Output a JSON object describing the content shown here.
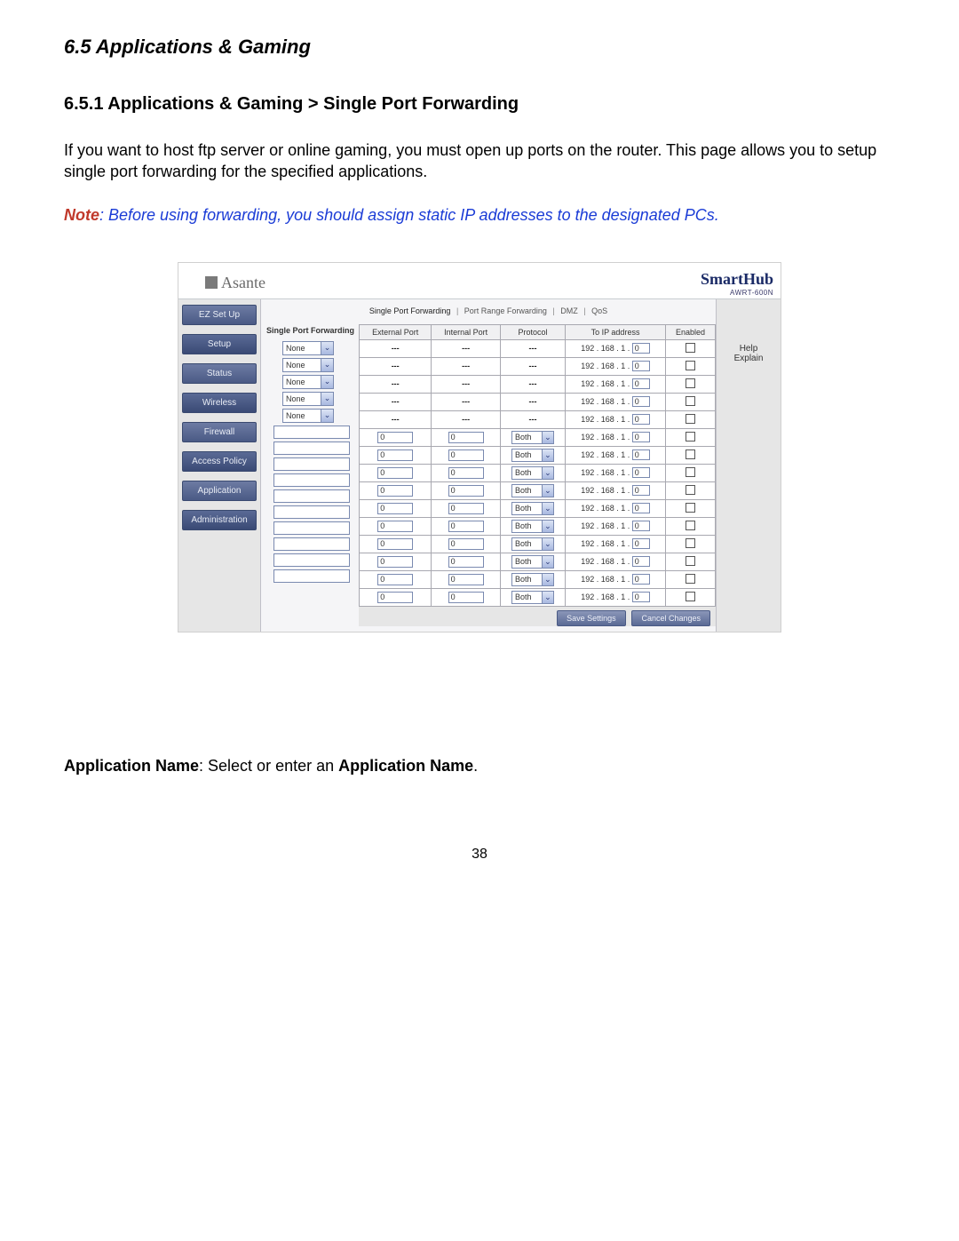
{
  "section_title": "6.5 Applications & Gaming",
  "subsection_title": "6.5.1 Applications & Gaming > Single Port Forwarding",
  "intro_para": "If you want to host ftp server or online gaming, you must open up ports on the router. This page allows you to setup single port forwarding for the specified applications.",
  "note_word": "Note",
  "note_rest": ": Before using forwarding, you should assign static IP addresses to the designated PCs.",
  "brand": "Asante",
  "hub_brand": "SmartHub",
  "hub_model": "AWRT-600N",
  "sidebar": [
    "EZ Set Up",
    "Setup",
    "Status",
    "Wireless",
    "Firewall",
    "Access Policy",
    "Application",
    "Administration"
  ],
  "subnav": {
    "active": "Single Port Forwarding",
    "items": [
      "Port Range Forwarding",
      "DMZ",
      "QoS"
    ]
  },
  "table_title": "Single Port Forwarding",
  "columns": [
    "External Port",
    "Internal Port",
    "Protocol",
    "To IP address",
    "Enabled"
  ],
  "preset_label": "None",
  "preset_count": 5,
  "custom_count": 10,
  "port_default": "0",
  "protocol_default": "Both",
  "ip_prefix": "192 . 168 . 1 .",
  "ip_last_default": "0",
  "help_line1": "Help",
  "help_line2": "Explain",
  "save_btn": "Save Settings",
  "cancel_btn": "Cancel Changes",
  "field_desc_label": "Application Name",
  "field_desc_text": ": Select or enter an ",
  "field_desc_label2": "Application Name",
  "field_desc_tail": ".",
  "page_number": "38"
}
